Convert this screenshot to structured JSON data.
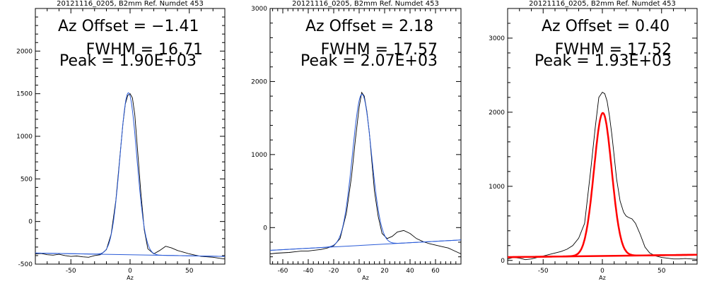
{
  "chart_data": [
    {
      "type": "line",
      "title": "20121116_0205, B2mm Ref. Numdet 453",
      "xlabel": "Az",
      "ylabel": "",
      "xlim": [
        -80,
        80
      ],
      "ylim": [
        -500,
        2500
      ],
      "xticks": [
        -50,
        0,
        50
      ],
      "yticks": [
        -500,
        0,
        500,
        1000,
        1500,
        2000
      ],
      "annotations": {
        "offset": "Az Offset = −1.41",
        "fwhm": "FWHM = 16.71",
        "peak": "Peak = 1.90E+03"
      },
      "fit_color": "#2a5bd7",
      "annotation_color": "#000000",
      "fit_width": 1,
      "series": [
        {
          "name": "data",
          "x": [
            -80,
            -75,
            -70,
            -65,
            -60,
            -55,
            -50,
            -45,
            -40,
            -35,
            -30,
            -25,
            -20,
            -16,
            -12,
            -9,
            -6,
            -4,
            -2,
            0,
            2,
            4,
            6,
            9,
            12,
            15,
            20,
            25,
            30,
            35,
            40,
            45,
            50,
            55,
            60,
            65,
            70,
            75,
            80
          ],
          "y": [
            -380,
            -375,
            -390,
            -395,
            -385,
            -400,
            -410,
            -405,
            -415,
            -420,
            -400,
            -390,
            -330,
            -150,
            250,
            700,
            1150,
            1380,
            1480,
            1500,
            1450,
            1250,
            900,
            350,
            -100,
            -320,
            -380,
            -340,
            -290,
            -310,
            -340,
            -360,
            -380,
            -395,
            -410,
            -415,
            -420,
            -430,
            -440
          ]
        },
        {
          "name": "fit",
          "baseline": [
            -390,
            -0.25
          ],
          "amplitude": 1900,
          "center": -1.41,
          "fwhm": 16.71
        }
      ]
    },
    {
      "type": "line",
      "title": "20121116_0205, B2mm Ref. Numdet 453",
      "xlabel": "Az",
      "ylabel": "",
      "xlim": [
        -70,
        80
      ],
      "ylim": [
        -500,
        3000
      ],
      "xticks": [
        -60,
        -40,
        -20,
        0,
        20,
        40,
        60
      ],
      "yticks": [
        0,
        1000,
        2000,
        3000
      ],
      "annotations": {
        "offset": "Az Offset = 2.18",
        "fwhm": "FWHM = 17.57",
        "peak": "Peak = 2.07E+03"
      },
      "fit_color": "#2a5bd7",
      "annotation_color": "#000000",
      "fit_width": 1,
      "series": [
        {
          "name": "data",
          "x": [
            -70,
            -65,
            -60,
            -55,
            -50,
            -45,
            -40,
            -35,
            -30,
            -25,
            -20,
            -15,
            -10,
            -6,
            -3,
            0,
            2,
            4,
            6,
            8,
            10,
            12,
            15,
            18,
            22,
            26,
            30,
            35,
            40,
            45,
            50,
            55,
            60,
            65,
            70,
            75,
            80
          ],
          "y": [
            -360,
            -350,
            -345,
            -340,
            -330,
            -320,
            -320,
            -310,
            -300,
            -280,
            -250,
            -150,
            200,
            700,
            1200,
            1650,
            1850,
            1800,
            1600,
            1300,
            900,
            500,
            150,
            -80,
            -150,
            -120,
            -60,
            -40,
            -80,
            -150,
            -190,
            -220,
            -240,
            -260,
            -280,
            -320,
            -360
          ]
        },
        {
          "name": "fit",
          "baseline": [
            -245,
            0.95
          ],
          "amplitude": 2070,
          "center": 2.18,
          "fwhm": 17.57
        }
      ]
    },
    {
      "type": "line",
      "title": "20121116_0205, B2mm Ref. Numdet 453",
      "xlabel": "Az",
      "ylabel": "",
      "xlim": [
        -80,
        80
      ],
      "ylim": [
        -50,
        3400
      ],
      "xticks": [
        -50,
        0,
        50
      ],
      "yticks": [
        0,
        1000,
        2000,
        3000
      ],
      "annotations": {
        "offset": "Az Offset = 0.40",
        "fwhm": "FWHM = 17.52",
        "peak": "Peak = 1.93E+03"
      },
      "fit_color": "#ff0000",
      "annotation_color": "#ff0000",
      "fit_width": 2.5,
      "series": [
        {
          "name": "data",
          "x": [
            -80,
            -75,
            -70,
            -65,
            -60,
            -55,
            -50,
            -45,
            -40,
            -35,
            -30,
            -25,
            -20,
            -15,
            -10,
            -6,
            -3,
            0,
            2,
            4,
            6,
            8,
            10,
            12,
            15,
            18,
            20,
            22,
            25,
            28,
            32,
            36,
            40,
            45,
            50,
            55,
            60,
            65,
            70,
            75,
            80
          ],
          "y": [
            20,
            40,
            30,
            10,
            20,
            40,
            60,
            80,
            100,
            120,
            150,
            200,
            300,
            500,
            1200,
            1800,
            2200,
            2270,
            2250,
            2150,
            1950,
            1700,
            1400,
            1100,
            800,
            650,
            600,
            580,
            560,
            500,
            350,
            180,
            100,
            60,
            40,
            30,
            20,
            20,
            25,
            20,
            15
          ]
        },
        {
          "name": "fit",
          "baseline": [
            60,
            0.2
          ],
          "amplitude": 1930,
          "center": 0.4,
          "fwhm": 17.52
        }
      ]
    }
  ]
}
